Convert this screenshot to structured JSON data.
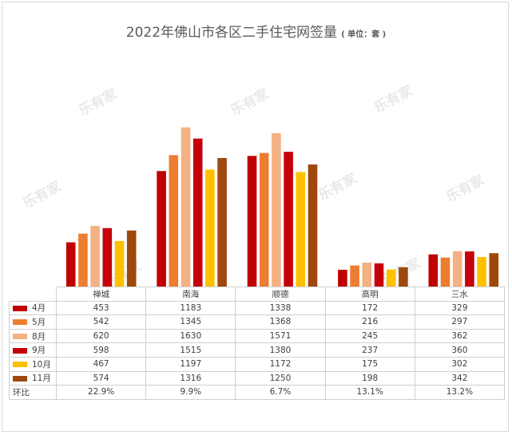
{
  "title": "2022年佛山市各区二手住宅网签量",
  "unit": "( 单位：套 )",
  "watermark": "乐有家",
  "colors": {
    "4月": "#c00000",
    "5月": "#ed7d31",
    "8月": "#f4b183",
    "9月": "#c5000b",
    "10月": "#ffc000",
    "11月": "#9e480e"
  },
  "chart_data": {
    "type": "bar",
    "title": "2022年佛山市各区二手住宅网签量",
    "unit_label": "单位：套",
    "categories": [
      "禅城",
      "南海",
      "顺德",
      "高明",
      "三水"
    ],
    "series": [
      {
        "name": "4月",
        "values": [
          453,
          1183,
          1338,
          172,
          329
        ]
      },
      {
        "name": "5月",
        "values": [
          542,
          1345,
          1368,
          216,
          297
        ]
      },
      {
        "name": "8月",
        "values": [
          620,
          1630,
          1571,
          245,
          362
        ]
      },
      {
        "name": "9月",
        "values": [
          598,
          1515,
          1380,
          237,
          360
        ]
      },
      {
        "name": "10月",
        "values": [
          467,
          1197,
          1172,
          175,
          302
        ]
      },
      {
        "name": "11月",
        "values": [
          574,
          1316,
          1250,
          198,
          342
        ]
      }
    ],
    "growth_label": "环比",
    "growth": [
      "22.9%",
      "9.9%",
      "6.7%",
      "13.1%",
      "13.2%"
    ],
    "ylim": [
      0,
      1700
    ],
    "grid": false,
    "legend": "data-table"
  }
}
